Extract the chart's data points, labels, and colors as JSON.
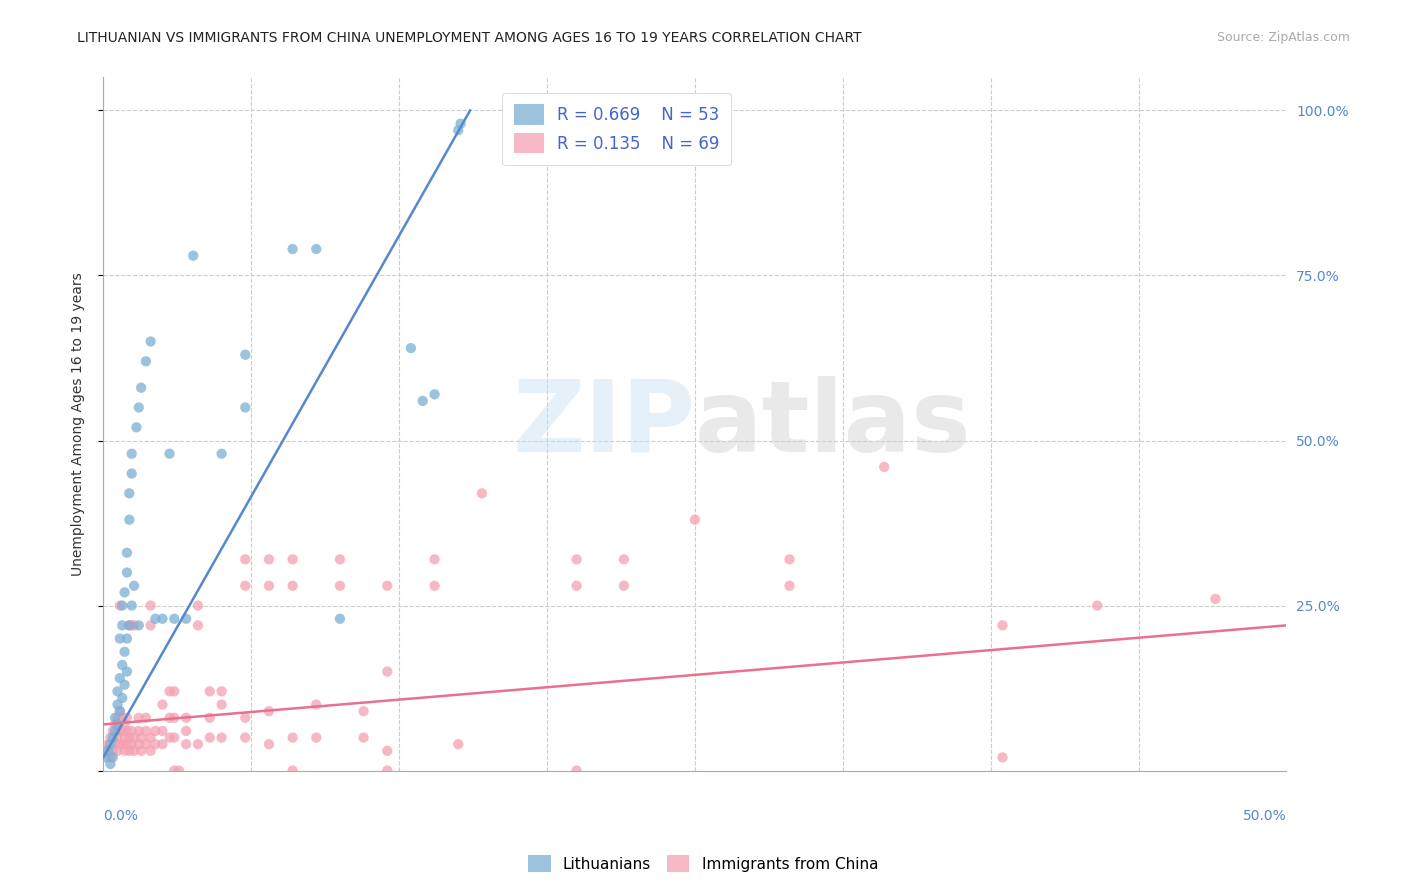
{
  "title": "LITHUANIAN VS IMMIGRANTS FROM CHINA UNEMPLOYMENT AMONG AGES 16 TO 19 YEARS CORRELATION CHART",
  "source": "Source: ZipAtlas.com",
  "ylabel": "Unemployment Among Ages 16 to 19 years",
  "xlim": [
    0.0,
    0.5
  ],
  "ylim": [
    -0.05,
    1.08
  ],
  "plot_ylim": [
    0.0,
    1.05
  ],
  "yticks": [
    0.0,
    0.25,
    0.5,
    0.75,
    1.0
  ],
  "ytick_labels_right": [
    "",
    "25.0%",
    "50.0%",
    "75.0%",
    "100.0%"
  ],
  "xticks": [
    0.0,
    0.0625,
    0.125,
    0.1875,
    0.25,
    0.3125,
    0.375,
    0.4375,
    0.5
  ],
  "watermark_line1": "ZIP",
  "watermark_line2": "atlas",
  "blue_color": "#7bafd4",
  "pink_color": "#f4a0b0",
  "blue_line_color": "#5588cc",
  "pink_line_color": "#e87090",
  "blue_scatter": [
    [
      0.001,
      0.02
    ],
    [
      0.002,
      0.03
    ],
    [
      0.003,
      0.01
    ],
    [
      0.003,
      0.04
    ],
    [
      0.004,
      0.02
    ],
    [
      0.004,
      0.05
    ],
    [
      0.005,
      0.06
    ],
    [
      0.005,
      0.08
    ],
    [
      0.006,
      0.07
    ],
    [
      0.006,
      0.1
    ],
    [
      0.006,
      0.12
    ],
    [
      0.007,
      0.09
    ],
    [
      0.007,
      0.14
    ],
    [
      0.007,
      0.2
    ],
    [
      0.008,
      0.11
    ],
    [
      0.008,
      0.16
    ],
    [
      0.008,
      0.22
    ],
    [
      0.008,
      0.25
    ],
    [
      0.009,
      0.13
    ],
    [
      0.009,
      0.18
    ],
    [
      0.009,
      0.27
    ],
    [
      0.01,
      0.15
    ],
    [
      0.01,
      0.2
    ],
    [
      0.01,
      0.3
    ],
    [
      0.01,
      0.33
    ],
    [
      0.011,
      0.22
    ],
    [
      0.011,
      0.38
    ],
    [
      0.011,
      0.42
    ],
    [
      0.012,
      0.25
    ],
    [
      0.012,
      0.45
    ],
    [
      0.012,
      0.48
    ],
    [
      0.013,
      0.28
    ],
    [
      0.014,
      0.52
    ],
    [
      0.015,
      0.22
    ],
    [
      0.015,
      0.55
    ],
    [
      0.016,
      0.58
    ],
    [
      0.018,
      0.62
    ],
    [
      0.02,
      0.65
    ],
    [
      0.022,
      0.23
    ],
    [
      0.025,
      0.23
    ],
    [
      0.028,
      0.48
    ],
    [
      0.03,
      0.23
    ],
    [
      0.035,
      0.23
    ],
    [
      0.038,
      0.78
    ],
    [
      0.05,
      0.48
    ],
    [
      0.06,
      0.63
    ],
    [
      0.06,
      0.55
    ],
    [
      0.08,
      0.79
    ],
    [
      0.09,
      0.79
    ],
    [
      0.1,
      0.23
    ],
    [
      0.13,
      0.64
    ],
    [
      0.135,
      0.56
    ],
    [
      0.14,
      0.57
    ],
    [
      0.15,
      0.97
    ],
    [
      0.151,
      0.98
    ]
  ],
  "pink_scatter": [
    [
      0.001,
      0.03
    ],
    [
      0.002,
      0.04
    ],
    [
      0.003,
      0.02
    ],
    [
      0.003,
      0.05
    ],
    [
      0.004,
      0.03
    ],
    [
      0.004,
      0.06
    ],
    [
      0.005,
      0.04
    ],
    [
      0.005,
      0.07
    ],
    [
      0.006,
      0.03
    ],
    [
      0.006,
      0.05
    ],
    [
      0.006,
      0.08
    ],
    [
      0.007,
      0.04
    ],
    [
      0.007,
      0.06
    ],
    [
      0.007,
      0.09
    ],
    [
      0.007,
      0.25
    ],
    [
      0.008,
      0.04
    ],
    [
      0.008,
      0.06
    ],
    [
      0.008,
      0.08
    ],
    [
      0.009,
      0.03
    ],
    [
      0.009,
      0.05
    ],
    [
      0.009,
      0.07
    ],
    [
      0.01,
      0.04
    ],
    [
      0.01,
      0.06
    ],
    [
      0.01,
      0.08
    ],
    [
      0.011,
      0.03
    ],
    [
      0.011,
      0.05
    ],
    [
      0.011,
      0.22
    ],
    [
      0.012,
      0.04
    ],
    [
      0.012,
      0.06
    ],
    [
      0.012,
      0.22
    ],
    [
      0.013,
      0.03
    ],
    [
      0.013,
      0.05
    ],
    [
      0.013,
      0.22
    ],
    [
      0.015,
      0.04
    ],
    [
      0.015,
      0.06
    ],
    [
      0.015,
      0.08
    ],
    [
      0.016,
      0.03
    ],
    [
      0.016,
      0.05
    ],
    [
      0.018,
      0.04
    ],
    [
      0.018,
      0.06
    ],
    [
      0.018,
      0.08
    ],
    [
      0.02,
      0.03
    ],
    [
      0.02,
      0.05
    ],
    [
      0.02,
      0.22
    ],
    [
      0.02,
      0.25
    ],
    [
      0.022,
      0.04
    ],
    [
      0.022,
      0.06
    ],
    [
      0.025,
      0.04
    ],
    [
      0.025,
      0.06
    ],
    [
      0.025,
      0.1
    ],
    [
      0.028,
      0.05
    ],
    [
      0.028,
      0.08
    ],
    [
      0.028,
      0.12
    ],
    [
      0.03,
      0.05
    ],
    [
      0.03,
      0.08
    ],
    [
      0.03,
      0.12
    ],
    [
      0.035,
      0.04
    ],
    [
      0.035,
      0.06
    ],
    [
      0.035,
      0.08
    ],
    [
      0.04,
      0.04
    ],
    [
      0.04,
      0.22
    ],
    [
      0.04,
      0.25
    ],
    [
      0.045,
      0.05
    ],
    [
      0.045,
      0.08
    ],
    [
      0.045,
      0.12
    ],
    [
      0.05,
      0.05
    ],
    [
      0.05,
      0.1
    ],
    [
      0.05,
      0.12
    ],
    [
      0.06,
      0.05
    ],
    [
      0.06,
      0.08
    ],
    [
      0.06,
      0.28
    ],
    [
      0.06,
      0.32
    ],
    [
      0.07,
      0.04
    ],
    [
      0.07,
      0.09
    ],
    [
      0.07,
      0.28
    ],
    [
      0.07,
      0.32
    ],
    [
      0.08,
      0.05
    ],
    [
      0.08,
      0.28
    ],
    [
      0.08,
      0.32
    ],
    [
      0.09,
      0.05
    ],
    [
      0.09,
      0.1
    ],
    [
      0.1,
      0.28
    ],
    [
      0.1,
      0.32
    ],
    [
      0.11,
      0.05
    ],
    [
      0.11,
      0.09
    ],
    [
      0.12,
      0.03
    ],
    [
      0.12,
      0.15
    ],
    [
      0.12,
      0.28
    ],
    [
      0.14,
      0.28
    ],
    [
      0.14,
      0.32
    ],
    [
      0.15,
      0.04
    ],
    [
      0.16,
      0.42
    ],
    [
      0.2,
      0.28
    ],
    [
      0.2,
      0.32
    ],
    [
      0.22,
      0.28
    ],
    [
      0.22,
      0.32
    ],
    [
      0.25,
      0.38
    ],
    [
      0.29,
      0.28
    ],
    [
      0.29,
      0.32
    ],
    [
      0.33,
      0.46
    ],
    [
      0.38,
      0.22
    ],
    [
      0.42,
      0.25
    ],
    [
      0.47,
      0.26
    ],
    [
      0.03,
      0.0
    ],
    [
      0.032,
      0.0
    ],
    [
      0.08,
      0.0
    ],
    [
      0.12,
      0.0
    ],
    [
      0.2,
      0.0
    ],
    [
      0.38,
      0.02
    ]
  ],
  "blue_line_x": [
    0.0,
    0.155
  ],
  "blue_line_y": [
    0.02,
    1.0
  ],
  "pink_line_x": [
    0.0,
    0.5
  ],
  "pink_line_y": [
    0.07,
    0.22
  ]
}
